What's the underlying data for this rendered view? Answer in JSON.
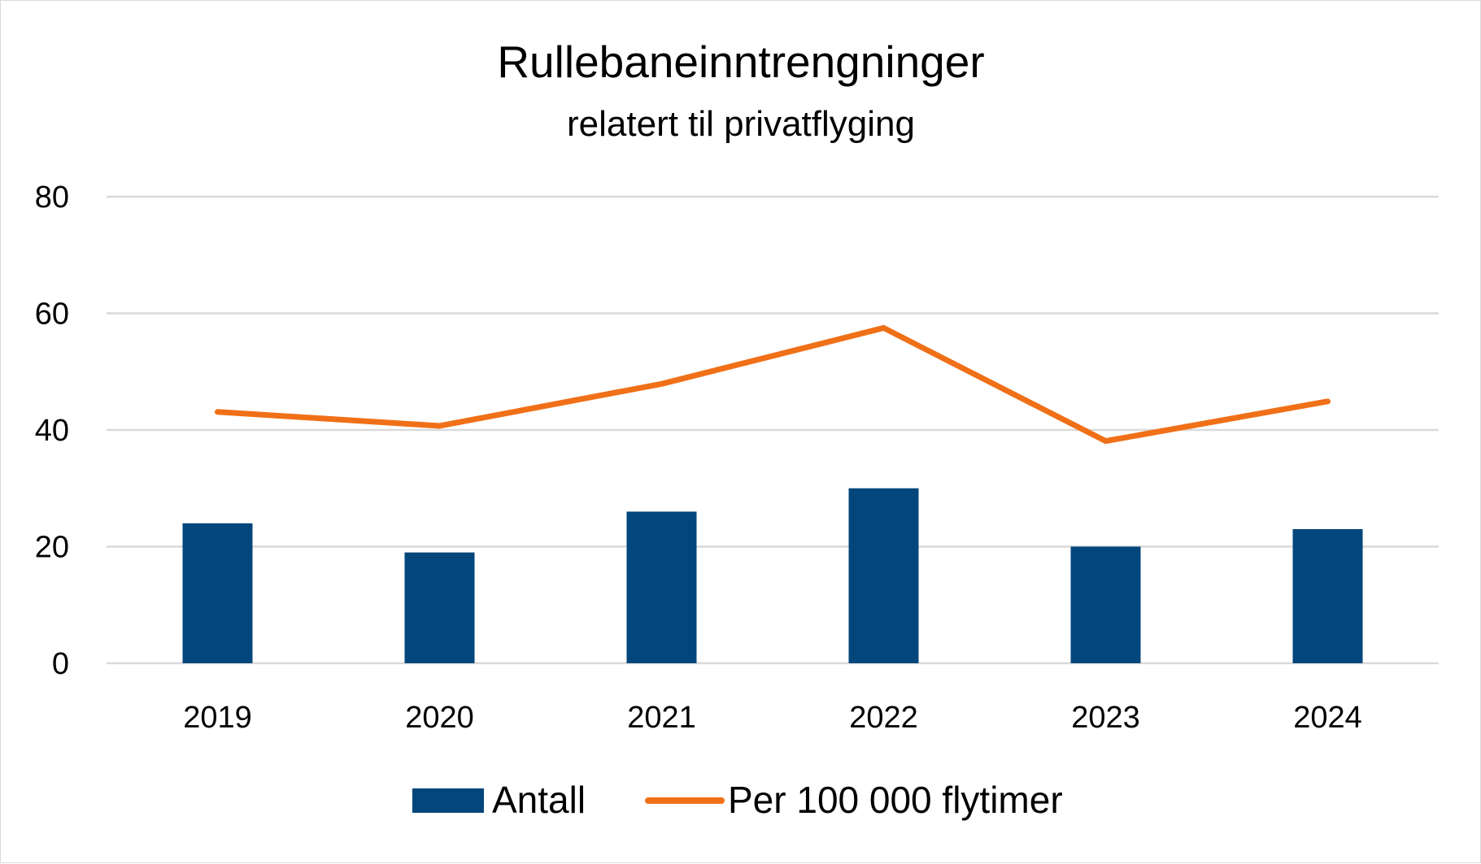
{
  "chart_data": {
    "type": "bar",
    "title": "Rullebaneinntrengninger",
    "subtitle": "relatert til privatflyging",
    "categories": [
      "2019",
      "2020",
      "2021",
      "2022",
      "2023",
      "2024"
    ],
    "series": [
      {
        "name": "Antall",
        "type": "bar",
        "color": "#03467c",
        "values": [
          24,
          19,
          26,
          30,
          20,
          23
        ]
      },
      {
        "name": "Per 100 000 flytimer",
        "type": "line",
        "color": "#f07018",
        "values": [
          43.1,
          40.7,
          47.9,
          57.5,
          38.1,
          44.9
        ]
      }
    ],
    "yticks": [
      "0",
      "20",
      "40",
      "60",
      "80"
    ],
    "ylim": [
      0,
      80
    ],
    "grid": true,
    "legend": "bottom"
  }
}
